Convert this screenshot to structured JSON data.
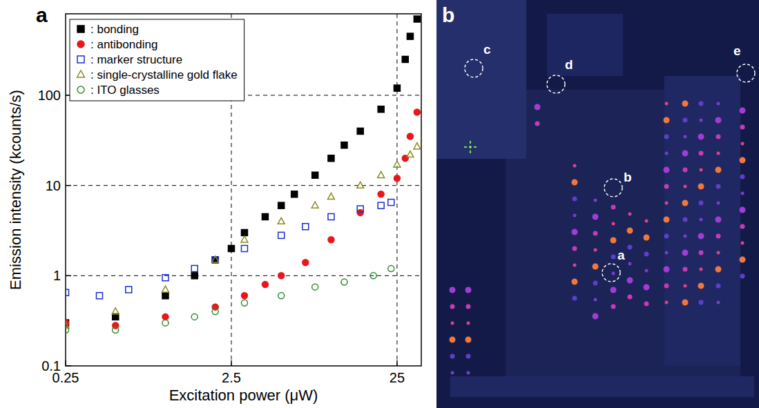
{
  "chart_data": {
    "type": "scatter",
    "panel_label": "a",
    "x_label": "Excitation power (μW)",
    "y_label": "Emission intensity (kcounts/s)",
    "log": true,
    "grid": true,
    "legend": "top-left",
    "xlim": [
      0.25,
      35
    ],
    "ylim": [
      0.1,
      800
    ],
    "xticks": [
      0.25,
      2.5,
      25
    ],
    "yticks": [
      0.1,
      1,
      10,
      100
    ],
    "series": [
      {
        "name": ": bonding",
        "color": "#000000",
        "marker": "square",
        "x": [
          0.25,
          0.5,
          1,
          1.5,
          2,
          2.5,
          3,
          4,
          5,
          6,
          8,
          10,
          12,
          15,
          20,
          25,
          28,
          30,
          33
        ],
        "values": [
          0.3,
          0.35,
          0.6,
          1.0,
          1.5,
          2,
          3,
          4.5,
          6,
          8,
          13,
          20,
          28,
          40,
          70,
          120,
          250,
          450,
          700
        ]
      },
      {
        "name": ": antibonding",
        "color": "#e8171b",
        "marker": "circle",
        "x": [
          0.25,
          0.5,
          1,
          2,
          3,
          4,
          5,
          7,
          10,
          15,
          20,
          25,
          28,
          30,
          33
        ],
        "values": [
          0.3,
          0.28,
          0.35,
          0.45,
          0.6,
          0.8,
          1.0,
          1.4,
          2.5,
          5,
          8,
          12,
          20,
          35,
          65
        ]
      },
      {
        "name": ": marker structure",
        "color": "#1a2fd0",
        "marker": "open-square",
        "x": [
          0.25,
          0.4,
          0.6,
          1,
          1.5,
          2,
          3,
          5,
          7,
          10,
          15,
          20,
          23
        ],
        "values": [
          0.65,
          0.6,
          0.7,
          0.95,
          1.2,
          1.5,
          2.0,
          2.8,
          3.5,
          4.5,
          5.5,
          6,
          6.5
        ]
      },
      {
        "name": ": single-crystalline gold flake",
        "color": "#8c8c1e",
        "marker": "open-triangle",
        "x": [
          0.25,
          0.5,
          1,
          2,
          3,
          5,
          8,
          10,
          15,
          20,
          25,
          30,
          33
        ],
        "values": [
          0.28,
          0.4,
          0.7,
          1.5,
          2.5,
          4,
          6,
          7.5,
          10,
          13,
          17,
          22,
          27
        ]
      },
      {
        "name": ": ITO glasses",
        "color": "#2e8b2e",
        "marker": "open-circle",
        "x": [
          0.25,
          0.5,
          1,
          1.5,
          2,
          3,
          5,
          8,
          12,
          18,
          23
        ],
        "values": [
          0.25,
          0.25,
          0.3,
          0.35,
          0.4,
          0.5,
          0.6,
          0.75,
          0.85,
          1.0,
          1.2
        ]
      }
    ]
  },
  "image": {
    "panel_label": "b",
    "regions": [
      {
        "label": "c"
      },
      {
        "label": "d"
      },
      {
        "label": "e"
      },
      {
        "label": "b"
      },
      {
        "label": "a"
      }
    ]
  }
}
